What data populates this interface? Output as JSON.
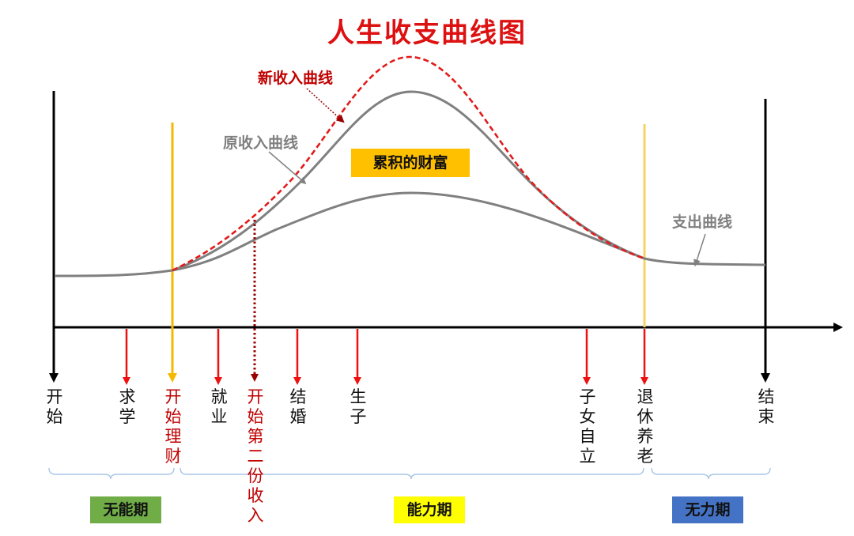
{
  "title": "人生收支曲线图",
  "curve_labels": {
    "new_income": "新收入曲线",
    "original_income": "原收入曲线",
    "expense": "支出曲线",
    "wealth": "累积的财富"
  },
  "milestones": {
    "start": "开始",
    "study": "求学",
    "start_finance": "开始理财",
    "employment": "就业",
    "second_income": "开始第二份收入",
    "marriage": "结婚",
    "childbirth": "生子",
    "children_independent": "子女自立",
    "retirement": "退休养老",
    "end": "结束"
  },
  "periods": {
    "no_ability": "无能期",
    "ability": "能力期",
    "powerless": "无力期"
  },
  "colors": {
    "title": "#dd1111",
    "new_income": "#dd1111",
    "curve_gray": "#808080",
    "marker_yellow": "#f5b800",
    "wealth_bg": "#ffc000",
    "no_ability_bg": "#70ad47",
    "ability_bg": "#ffff00",
    "powerless_bg": "#4472c4"
  }
}
